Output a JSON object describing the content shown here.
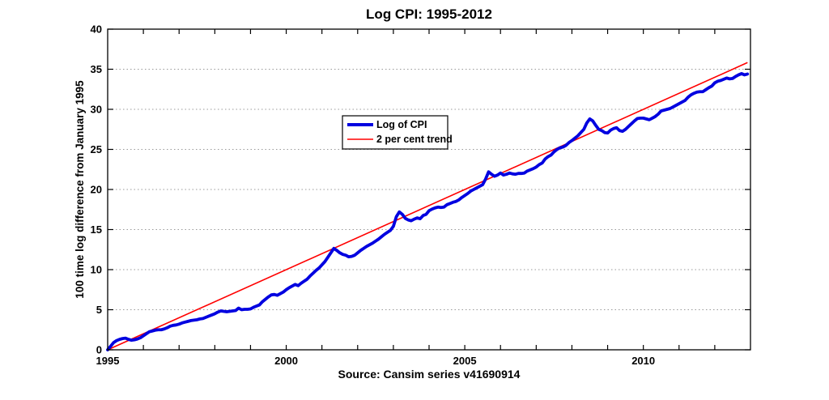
{
  "title": "Log CPI: 1995-2012",
  "y_axis_label": "100 time log difference from January 1995",
  "x_axis_label": "Source: Cansim series v41690914",
  "legend": {
    "items": [
      {
        "label": "Log of CPI",
        "color": "#0000e0",
        "line_width": 4
      },
      {
        "label": "2 per cent trend",
        "color": "#ff0000",
        "line_width": 1.6
      }
    ]
  },
  "colors": {
    "series_cpi": "#0000e0",
    "series_trend": "#ff0000",
    "axis": "#000000",
    "grid": "#999999",
    "background": "#ffffff"
  },
  "chart_data": {
    "type": "line",
    "title": "Log CPI: 1995-2012",
    "xlabel": "Source: Cansim series v41690914",
    "ylabel": "100 time log difference from January 1995",
    "xlim": [
      1995,
      2013
    ],
    "ylim": [
      0,
      40
    ],
    "xticks_labeled": [
      1995,
      2000,
      2005,
      2010
    ],
    "xtick_minor_step_years": 1,
    "yticks": [
      0,
      5,
      10,
      15,
      20,
      25,
      30,
      35,
      40
    ],
    "grid": "horizontal dotted lines at labeled y ticks",
    "legend_position": "inside upper-middle-left",
    "series": [
      {
        "name": "Log of CPI",
        "color": "#0000e0",
        "width": 3.8,
        "x_start": 1995.0,
        "x_step": 0.0833333,
        "values": [
          0.0,
          0.45,
          0.9,
          1.15,
          1.3,
          1.4,
          1.45,
          1.3,
          1.2,
          1.25,
          1.35,
          1.5,
          1.75,
          2.0,
          2.25,
          2.35,
          2.45,
          2.5,
          2.5,
          2.6,
          2.75,
          2.95,
          3.05,
          3.1,
          3.2,
          3.35,
          3.45,
          3.55,
          3.65,
          3.7,
          3.75,
          3.85,
          3.9,
          4.05,
          4.2,
          4.35,
          4.5,
          4.7,
          4.85,
          4.8,
          4.75,
          4.8,
          4.85,
          4.9,
          5.2,
          5.0,
          5.05,
          5.05,
          5.1,
          5.3,
          5.45,
          5.6,
          6.0,
          6.3,
          6.6,
          6.85,
          6.9,
          6.8,
          7.0,
          7.2,
          7.5,
          7.75,
          7.95,
          8.15,
          8.0,
          8.3,
          8.55,
          8.8,
          9.2,
          9.55,
          9.9,
          10.2,
          10.6,
          11.0,
          11.55,
          12.1,
          12.65,
          12.4,
          12.1,
          11.9,
          11.8,
          11.6,
          11.65,
          11.8,
          12.1,
          12.4,
          12.65,
          12.9,
          13.1,
          13.3,
          13.55,
          13.8,
          14.1,
          14.4,
          14.65,
          14.9,
          15.4,
          16.6,
          17.2,
          16.9,
          16.4,
          16.2,
          16.1,
          16.3,
          16.45,
          16.35,
          16.75,
          16.9,
          17.35,
          17.55,
          17.7,
          17.8,
          17.75,
          17.8,
          18.1,
          18.25,
          18.4,
          18.5,
          18.7,
          19.0,
          19.25,
          19.5,
          19.8,
          20.0,
          20.2,
          20.4,
          20.6,
          21.3,
          22.2,
          21.9,
          21.65,
          21.8,
          22.05,
          21.8,
          21.9,
          22.05,
          21.95,
          21.9,
          22.0,
          22.0,
          22.05,
          22.3,
          22.45,
          22.6,
          22.8,
          23.1,
          23.3,
          23.8,
          24.1,
          24.3,
          24.7,
          25.0,
          25.2,
          25.3,
          25.5,
          25.85,
          26.1,
          26.4,
          26.7,
          27.1,
          27.5,
          28.3,
          28.8,
          28.55,
          28.0,
          27.5,
          27.35,
          27.1,
          27.05,
          27.4,
          27.6,
          27.7,
          27.35,
          27.25,
          27.5,
          27.85,
          28.2,
          28.55,
          28.85,
          28.9,
          28.9,
          28.8,
          28.7,
          28.9,
          29.1,
          29.4,
          29.8,
          29.9,
          30.0,
          30.1,
          30.3,
          30.5,
          30.7,
          30.9,
          31.1,
          31.5,
          31.8,
          32.0,
          32.15,
          32.2,
          32.2,
          32.45,
          32.7,
          32.9,
          33.3,
          33.5,
          33.6,
          33.75,
          33.9,
          33.8,
          33.85,
          34.1,
          34.3,
          34.45,
          34.3,
          34.4
        ]
      },
      {
        "name": "2 per cent trend",
        "color": "#ff0000",
        "width": 1.6,
        "x": [
          1995.0,
          2012.917
        ],
        "y": [
          0.0,
          35.83
        ]
      }
    ]
  }
}
